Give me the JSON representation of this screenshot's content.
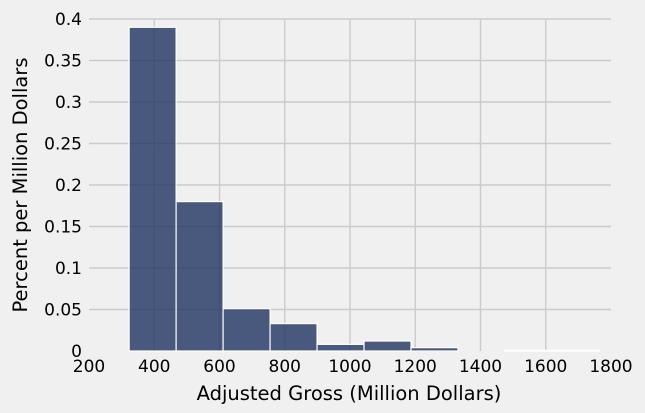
{
  "chart_data": {
    "type": "histogram",
    "xlabel": "Adjusted Gross (Million Dollars)",
    "ylabel": "Percent per Million Dollars",
    "xlim": [
      200,
      1800
    ],
    "ylim": [
      0,
      0.4
    ],
    "xticks": [
      200,
      400,
      600,
      800,
      1000,
      1200,
      1400,
      1600,
      1800
    ],
    "yticks": [
      0,
      0.05,
      0.1,
      0.15,
      0.2,
      0.25,
      0.3,
      0.35,
      0.4
    ],
    "xtick_labels": [
      "200",
      "400",
      "600",
      "800",
      "1000",
      "1200",
      "1400",
      "1600",
      "1800"
    ],
    "ytick_labels": [
      "0",
      "0.05",
      "0.1",
      "0.15",
      "0.2",
      "0.25",
      "0.3",
      "0.35",
      "0.4"
    ],
    "grid": true,
    "bar_color": "#1f3260",
    "bins": [
      {
        "start": 323,
        "end": 467,
        "value": 0.39
      },
      {
        "start": 467,
        "end": 611,
        "value": 0.18
      },
      {
        "start": 611,
        "end": 755,
        "value": 0.051
      },
      {
        "start": 755,
        "end": 899,
        "value": 0.033
      },
      {
        "start": 899,
        "end": 1043,
        "value": 0.008
      },
      {
        "start": 1043,
        "end": 1187,
        "value": 0.012
      },
      {
        "start": 1187,
        "end": 1331,
        "value": 0.004
      },
      {
        "start": 1331,
        "end": 1475,
        "value": 0.0
      },
      {
        "start": 1475,
        "end": 1619,
        "value": 0.0008
      },
      {
        "start": 1619,
        "end": 1763,
        "value": 0.0008
      }
    ]
  }
}
